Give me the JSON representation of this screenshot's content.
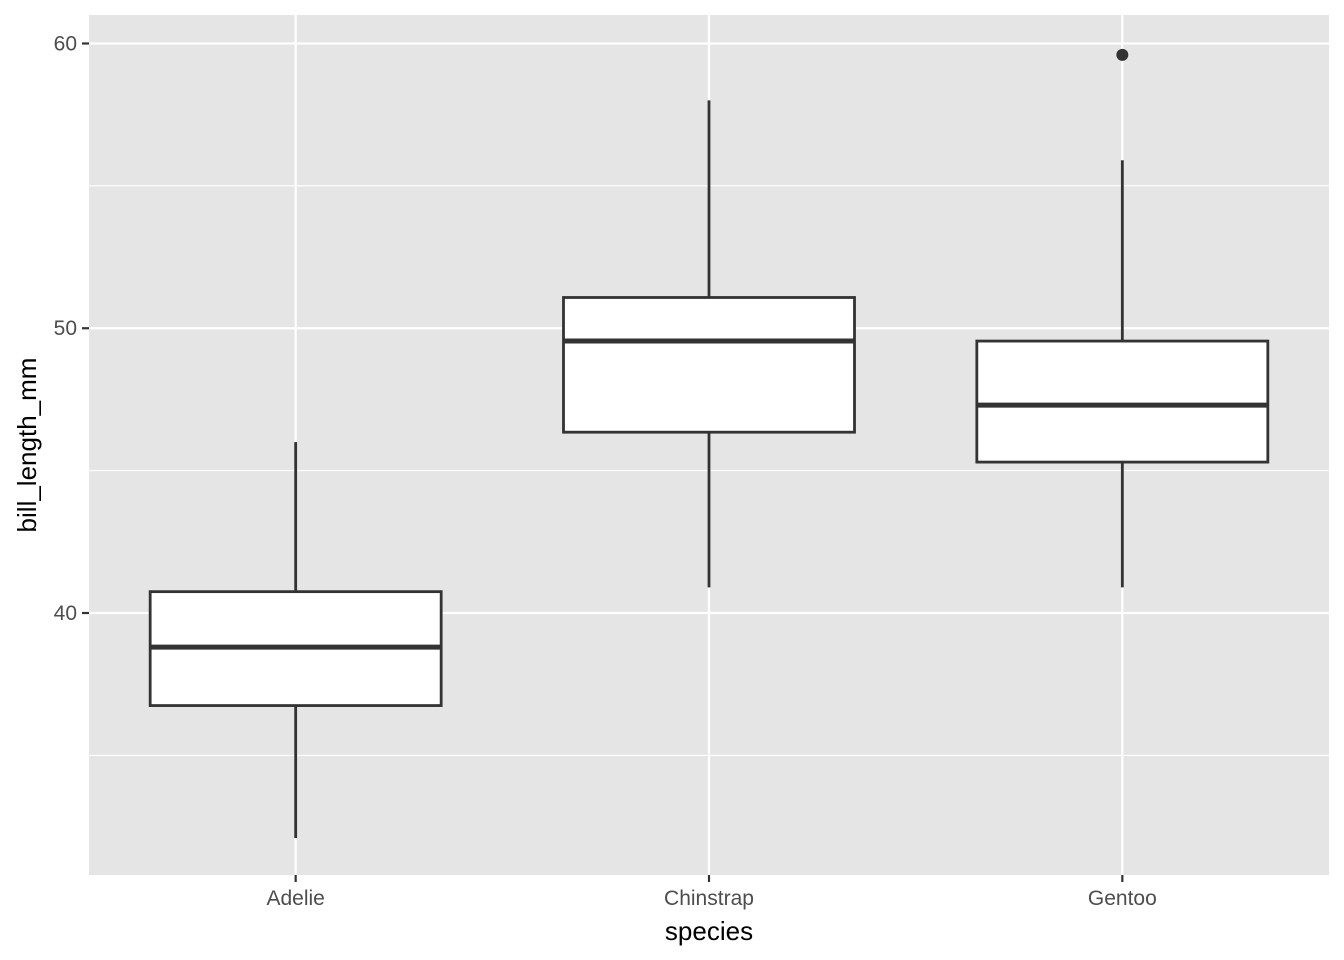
{
  "chart_data": {
    "type": "boxplot",
    "xlabel": "species",
    "ylabel": "bill_length_mm",
    "categories": [
      "Adelie",
      "Chinstrap",
      "Gentoo"
    ],
    "y_ticks": [
      40,
      50,
      60
    ],
    "y_tick_labels": [
      "40",
      "50",
      "60"
    ],
    "ylim": [
      30.8,
      61.0
    ],
    "grid": true,
    "background_color": "#e5e5e5",
    "grid_color": "#ffffff",
    "box_fill": "#ffffff",
    "box_stroke": "#333333",
    "boxes": [
      {
        "category": "Adelie",
        "whisker_low": 32.1,
        "q1": 36.75,
        "median": 38.8,
        "q3": 40.75,
        "whisker_high": 46.0,
        "outliers": []
      },
      {
        "category": "Chinstrap",
        "whisker_low": 40.9,
        "q1": 46.35,
        "median": 49.55,
        "q3": 51.08,
        "whisker_high": 58.0,
        "outliers": []
      },
      {
        "category": "Gentoo",
        "whisker_low": 40.9,
        "q1": 45.3,
        "median": 47.3,
        "q3": 49.55,
        "whisker_high": 55.9,
        "outliers": [
          59.6
        ]
      }
    ]
  }
}
